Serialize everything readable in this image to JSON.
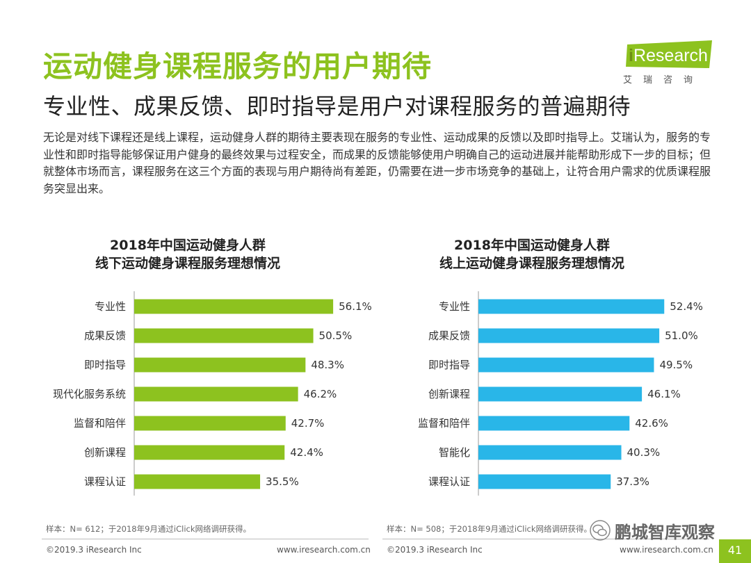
{
  "title": "运动健身课程服务的用户期待",
  "subtitle": "专业性、成果反馈、即时指导是用户对课程服务的普遍期待",
  "body_text": "无论是对线下课程还是线上课程，运动健身人群的期待主要表现在服务的专业性、运动成果的反馈以及即时指导上。艾瑞认为，服务的专业性和即时指导能够保证用户健身的最终效果与过程安全，而成果的反馈能够使用户明确自己的运动进展并能帮助形成下一步的目标；但就整体市场而言，课程服务在这三个方面的表现与用户期待尚有差距，仍需要在进一步市场竞争的基础上，让符合用户需求的优质课程服务突显出来。",
  "logo": {
    "brand_i": "i",
    "brand_rest": "Research",
    "cn": "艾瑞咨询"
  },
  "colors": {
    "green": "#8dc21f",
    "cyan": "#29b6e8"
  },
  "chart_data": [
    {
      "type": "bar",
      "orientation": "horizontal",
      "title_line1": "2018年中国运动健身人群",
      "title_line2": "线下运动健身课程服务理想情况",
      "categories": [
        "专业性",
        "成果反馈",
        "即时指导",
        "现代化服务系统",
        "监督和陪伴",
        "创新课程",
        "课程认证"
      ],
      "values": [
        56.1,
        50.5,
        48.3,
        46.2,
        42.7,
        42.4,
        35.5
      ],
      "labels": [
        "56.1%",
        "50.5%",
        "48.3%",
        "46.2%",
        "42.7%",
        "42.4%",
        "35.5%"
      ],
      "unit": "%",
      "color": "#8dc21f",
      "xlim": [
        0,
        60
      ]
    },
    {
      "type": "bar",
      "orientation": "horizontal",
      "title_line1": "2018年中国运动健身人群",
      "title_line2": "线上运动健身课程服务理想情况",
      "categories": [
        "专业性",
        "成果反馈",
        "即时指导",
        "创新课程",
        "监督和陪伴",
        "智能化",
        "课程认证"
      ],
      "values": [
        52.4,
        51.0,
        49.5,
        46.1,
        42.6,
        40.3,
        37.3
      ],
      "labels": [
        "52.4%",
        "51.0%",
        "49.5%",
        "46.1%",
        "42.6%",
        "40.3%",
        "37.3%"
      ],
      "unit": "%",
      "color": "#29b6e8",
      "xlim": [
        0,
        60
      ]
    }
  ],
  "notes": {
    "left": "样本：N= 612；于2018年9月通过iClick网络调研获得。",
    "right": "样本：N= 508；于2018年9月通过iClick网络调研获得。"
  },
  "footer": {
    "copyright": "©2019.3  iResearch Inc",
    "url": "www.iresearch.com.cn"
  },
  "watermark": "鹏城智库观察",
  "page_number": "41"
}
